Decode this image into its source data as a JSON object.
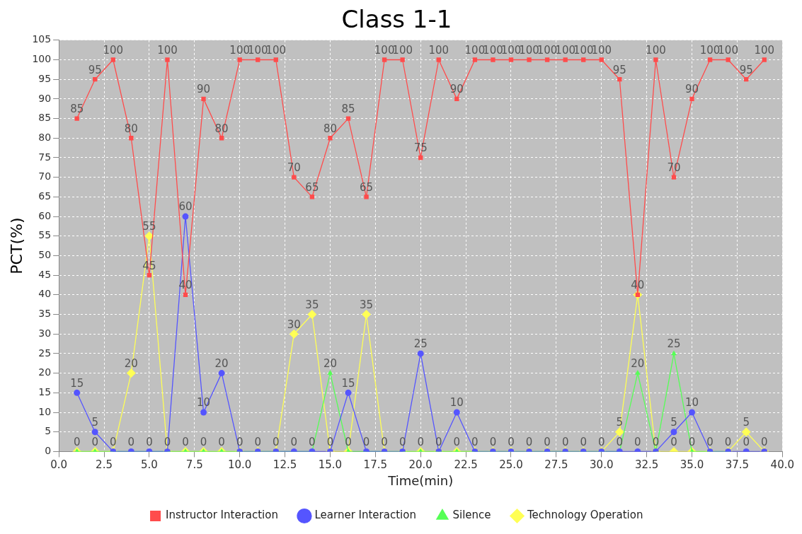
{
  "chart_data": {
    "type": "line",
    "title": "Class 1-1",
    "xlabel": "Time(min)",
    "ylabel": "PCT(%)",
    "x": [
      1,
      2,
      3,
      4,
      5,
      6,
      7,
      8,
      9,
      10,
      11,
      12,
      13,
      14,
      15,
      16,
      17,
      18,
      19,
      20,
      21,
      22,
      23,
      24,
      25,
      26,
      27,
      28,
      29,
      30,
      31,
      32,
      33,
      34,
      35,
      36,
      37,
      38,
      39
    ],
    "series": [
      {
        "name": "Instructor Interaction",
        "color": "#ff4c4c",
        "marker": "square",
        "values": [
          85,
          95,
          100,
          80,
          45,
          100,
          40,
          90,
          80,
          100,
          100,
          100,
          70,
          65,
          80,
          85,
          65,
          100,
          100,
          75,
          100,
          90,
          100,
          100,
          100,
          100,
          100,
          100,
          100,
          100,
          95,
          40,
          100,
          70,
          90,
          100,
          100,
          95,
          100
        ],
        "value_labels": [
          "85",
          "95",
          "100",
          "80",
          "45",
          "100",
          "40",
          "90",
          "80",
          "100",
          "100",
          "100",
          "70",
          "65",
          "80",
          "85",
          "65",
          "100",
          "100",
          "75",
          "100",
          "90",
          "100",
          "100",
          "100",
          "100",
          "100",
          "100",
          "100",
          "100",
          "95",
          "40",
          "100",
          "70",
          "90",
          "100",
          "100",
          "95",
          "100"
        ]
      },
      {
        "name": "Learner Interaction",
        "color": "#5555ff",
        "marker": "circle",
        "values": [
          15,
          5,
          0,
          0,
          0,
          0,
          60,
          10,
          20,
          0,
          0,
          0,
          0,
          0,
          0,
          15,
          0,
          0,
          0,
          25,
          0,
          10,
          0,
          0,
          0,
          0,
          0,
          0,
          0,
          0,
          0,
          0,
          0,
          5,
          10,
          0,
          0,
          0,
          0
        ],
        "value_labels": [
          "15",
          "5",
          "0",
          "0",
          "0",
          "0",
          "60",
          "10",
          "20",
          "0",
          "0",
          "0",
          "0",
          "0",
          "0",
          "15",
          "0",
          "0",
          "0",
          "25",
          "0",
          "10",
          "0",
          "0",
          "0",
          "0",
          "0",
          "0",
          "0",
          "0",
          "0",
          "0",
          "0",
          "5",
          "10",
          "0",
          "0",
          "0",
          "0"
        ]
      },
      {
        "name": "Silence",
        "color": "#55ff55",
        "marker": "triangle",
        "values": [
          0,
          0,
          0,
          0,
          0,
          0,
          0,
          0,
          0,
          0,
          0,
          0,
          0,
          0,
          20,
          0,
          0,
          0,
          0,
          0,
          0,
          0,
          0,
          0,
          0,
          0,
          0,
          0,
          0,
          0,
          0,
          20,
          0,
          25,
          0,
          0,
          0,
          null,
          null
        ],
        "value_labels": [
          "0",
          "0",
          null,
          null,
          null,
          null,
          "0",
          "0",
          "0",
          null,
          null,
          null,
          null,
          null,
          "20",
          "0",
          null,
          null,
          null,
          "0",
          null,
          "0",
          null,
          null,
          null,
          null,
          null,
          null,
          null,
          null,
          null,
          "20",
          null,
          "25",
          "0",
          null,
          null,
          null,
          null
        ]
      },
      {
        "name": "Technology Operation",
        "color": "#ffff55",
        "marker": "diamond",
        "values": [
          0,
          0,
          0,
          20,
          55,
          0,
          0,
          0,
          0,
          0,
          0,
          0,
          30,
          35,
          0,
          0,
          35,
          0,
          0,
          0,
          0,
          0,
          0,
          0,
          0,
          0,
          0,
          0,
          0,
          0,
          5,
          40,
          0,
          0,
          0,
          0,
          0,
          5,
          0
        ],
        "value_labels": [
          null,
          null,
          null,
          "20",
          "55",
          null,
          null,
          null,
          null,
          null,
          null,
          null,
          "30",
          "35",
          null,
          null,
          "35",
          null,
          null,
          null,
          null,
          null,
          null,
          null,
          null,
          null,
          null,
          null,
          null,
          null,
          "5",
          null,
          null,
          "0",
          null,
          null,
          null,
          "5",
          null
        ]
      }
    ],
    "xlim": [
      0,
      40
    ],
    "xticks": [
      {
        "value": 0,
        "label": "0.0"
      },
      {
        "value": 2.5,
        "label": "2.5"
      },
      {
        "value": 5,
        "label": "5.0"
      },
      {
        "value": 7.5,
        "label": "7.5"
      },
      {
        "value": 10,
        "label": "10.0"
      },
      {
        "value": 12.5,
        "label": "12.5"
      },
      {
        "value": 15,
        "label": "15.0"
      },
      {
        "value": 17.5,
        "label": "17.5"
      },
      {
        "value": 20,
        "label": "20.0"
      },
      {
        "value": 22.5,
        "label": "22.5"
      },
      {
        "value": 25,
        "label": "25.0"
      },
      {
        "value": 27.5,
        "label": "27.5"
      },
      {
        "value": 30,
        "label": "30.0"
      },
      {
        "value": 32.5,
        "label": "32.5"
      },
      {
        "value": 35,
        "label": "35.0"
      },
      {
        "value": 37.5,
        "label": "37.5"
      },
      {
        "value": 40,
        "label": "40.0"
      }
    ],
    "ylim": [
      0,
      105
    ],
    "yticks": [
      0,
      5,
      10,
      15,
      20,
      25,
      30,
      35,
      40,
      45,
      50,
      55,
      60,
      65,
      70,
      75,
      80,
      85,
      90,
      95,
      100,
      105
    ],
    "grid": true,
    "legend": "bottom",
    "line_style": "solid"
  }
}
